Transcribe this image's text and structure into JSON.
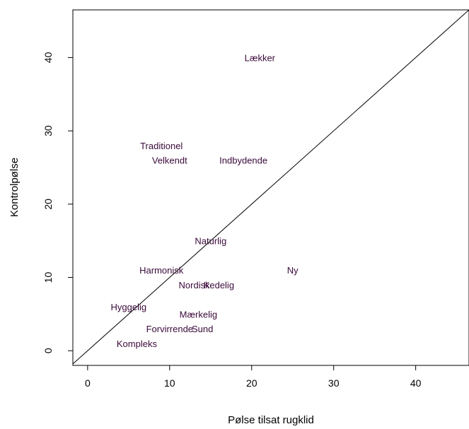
{
  "chart_data": {
    "type": "scatter",
    "title": "",
    "xlabel": "Pølse tilsat rugklid",
    "ylabel": "Kontrolpølse",
    "xlim": [
      -1.8,
      46.5
    ],
    "ylim": [
      -2.0,
      46.5
    ],
    "xticks": [
      0,
      10,
      20,
      30,
      40
    ],
    "yticks": [
      0,
      10,
      20,
      30,
      40
    ],
    "grid": false,
    "markers": "text labels only",
    "reference_line": {
      "type": "identity",
      "slope": 1,
      "intercept": 0
    },
    "colors": {
      "points": "#3a0a3a",
      "axes": "#000000",
      "line": "#000000"
    },
    "points": [
      {
        "label": "Lækker",
        "x": 21.0,
        "y": 40.0
      },
      {
        "label": "Traditionel",
        "x": 9.0,
        "y": 28.0
      },
      {
        "label": "Velkendt",
        "x": 10.0,
        "y": 26.0
      },
      {
        "label": "Indbydende",
        "x": 19.0,
        "y": 26.0
      },
      {
        "label": "Naturlig",
        "x": 15.0,
        "y": 15.0
      },
      {
        "label": "Ny",
        "x": 25.0,
        "y": 11.0
      },
      {
        "label": "Harmonisk",
        "x": 9.0,
        "y": 11.0
      },
      {
        "label": "Nordisk",
        "x": 13.0,
        "y": 9.0
      },
      {
        "label": "Kedelig",
        "x": 16.0,
        "y": 9.0
      },
      {
        "label": "Hyggelig",
        "x": 5.0,
        "y": 6.0
      },
      {
        "label": "Mærkelig",
        "x": 13.5,
        "y": 5.0
      },
      {
        "label": "Forvirrende",
        "x": 10.0,
        "y": 3.0
      },
      {
        "label": "Sund",
        "x": 14.0,
        "y": 3.0
      },
      {
        "label": "Kompleks",
        "x": 6.0,
        "y": 1.0
      }
    ]
  }
}
